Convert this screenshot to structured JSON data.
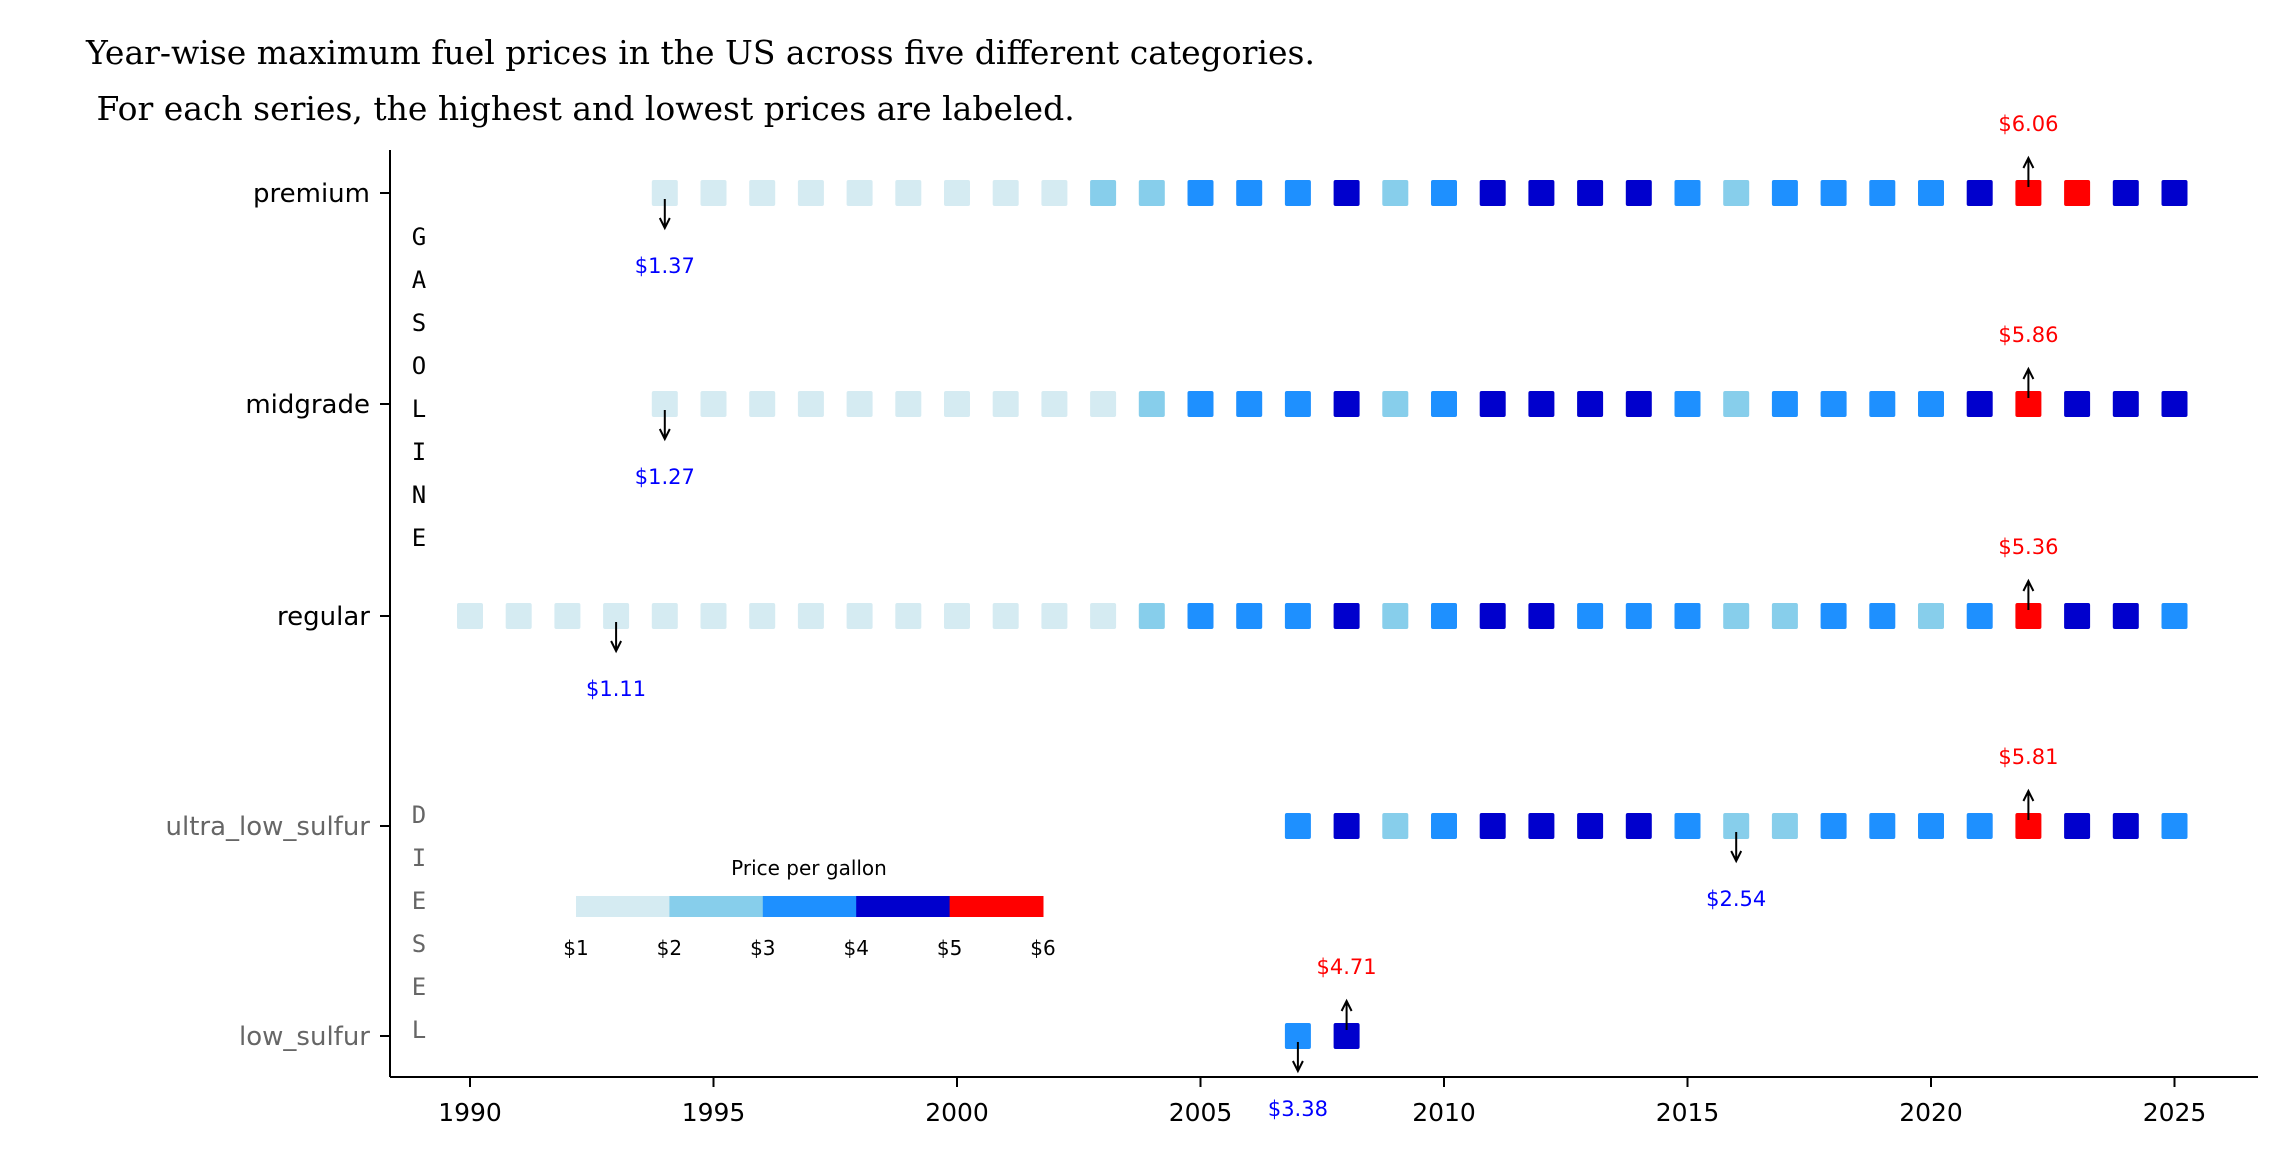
{
  "chart_data": {
    "type": "scatter",
    "title_lines": [
      "Year-wise maximum fuel prices in the US across five different categories.",
      " For each series, the highest and lowest prices are labeled."
    ],
    "xlabel": "",
    "ylabel": "",
    "xlim": [
      1988.5,
      2026.7
    ],
    "x_ticks": [
      "1990",
      "1995",
      "2000",
      "2005",
      "2010",
      "2015",
      "2020",
      "2025"
    ],
    "grid": false,
    "groups": [
      {
        "label": "GASOLINE",
        "color": "#000000"
      },
      {
        "label": "DIESEL",
        "color": "#666666"
      }
    ],
    "series": [
      {
        "name": "premium",
        "group": "GASOLINE",
        "start_year": 1994,
        "values": [
          1.37,
          1.4,
          1.45,
          1.5,
          1.4,
          1.5,
          1.8,
          1.75,
          1.7,
          2.2,
          2.4,
          3.1,
          3.3,
          3.5,
          4.2,
          2.9,
          3.4,
          4.1,
          4.3,
          4.2,
          4.1,
          3.3,
          2.9,
          3.2,
          3.5,
          3.4,
          3.3,
          4.3,
          6.06,
          5.2,
          4.6,
          4.5
        ],
        "min_label": "$1.37",
        "max_label": "$6.06"
      },
      {
        "name": "midgrade",
        "group": "GASOLINE",
        "start_year": 1994,
        "values": [
          1.27,
          1.3,
          1.35,
          1.4,
          1.3,
          1.4,
          1.7,
          1.65,
          1.6,
          1.9,
          2.3,
          3.0,
          3.2,
          3.4,
          4.1,
          2.8,
          3.2,
          4.0,
          4.2,
          4.1,
          4.0,
          3.2,
          2.7,
          3.0,
          3.3,
          3.2,
          3.1,
          4.1,
          5.86,
          4.8,
          4.4,
          4.3
        ],
        "min_label": "$1.27",
        "max_label": "$5.86"
      },
      {
        "name": "regular",
        "group": "GASOLINE",
        "start_year": 1990,
        "values": [
          1.3,
          1.2,
          1.15,
          1.11,
          1.2,
          1.25,
          1.3,
          1.35,
          1.2,
          1.3,
          1.6,
          1.55,
          1.5,
          1.8,
          2.2,
          3.0,
          3.1,
          3.3,
          4.1,
          2.7,
          3.0,
          4.0,
          4.0,
          3.8,
          3.7,
          3.0,
          2.6,
          2.8,
          3.1,
          3.0,
          2.6,
          3.4,
          5.36,
          4.1,
          4.0,
          3.6
        ],
        "min_label": "$1.11",
        "max_label": "$5.36"
      },
      {
        "name": "ultra_low_sulfur",
        "group": "DIESEL",
        "start_year": 2007,
        "values": [
          3.5,
          4.7,
          2.9,
          3.3,
          4.1,
          4.2,
          4.2,
          4.0,
          3.6,
          2.54,
          2.9,
          3.4,
          3.3,
          3.1,
          3.7,
          5.81,
          4.6,
          4.4,
          3.9
        ],
        "min_label": "$2.54",
        "max_label": "$5.81"
      },
      {
        "name": "low_sulfur",
        "group": "DIESEL",
        "start_year": 2007,
        "values": [
          3.38,
          4.71
        ],
        "min_label": "$3.38",
        "max_label": "$4.71"
      }
    ],
    "colorbar": {
      "title": "Price per gallon",
      "bounds": [
        1,
        2,
        3,
        4,
        5,
        6
      ],
      "tick_labels": [
        "$1",
        "$2",
        "$3",
        "$4",
        "$5",
        "$6"
      ],
      "colors": [
        "#d5ebf2",
        "#87ceeb",
        "#1e90ff",
        "#0000cd",
        "#ff0000"
      ],
      "placement": "lower-left"
    },
    "min_label_color": "#0000ff",
    "max_label_color": "#ff0000"
  }
}
